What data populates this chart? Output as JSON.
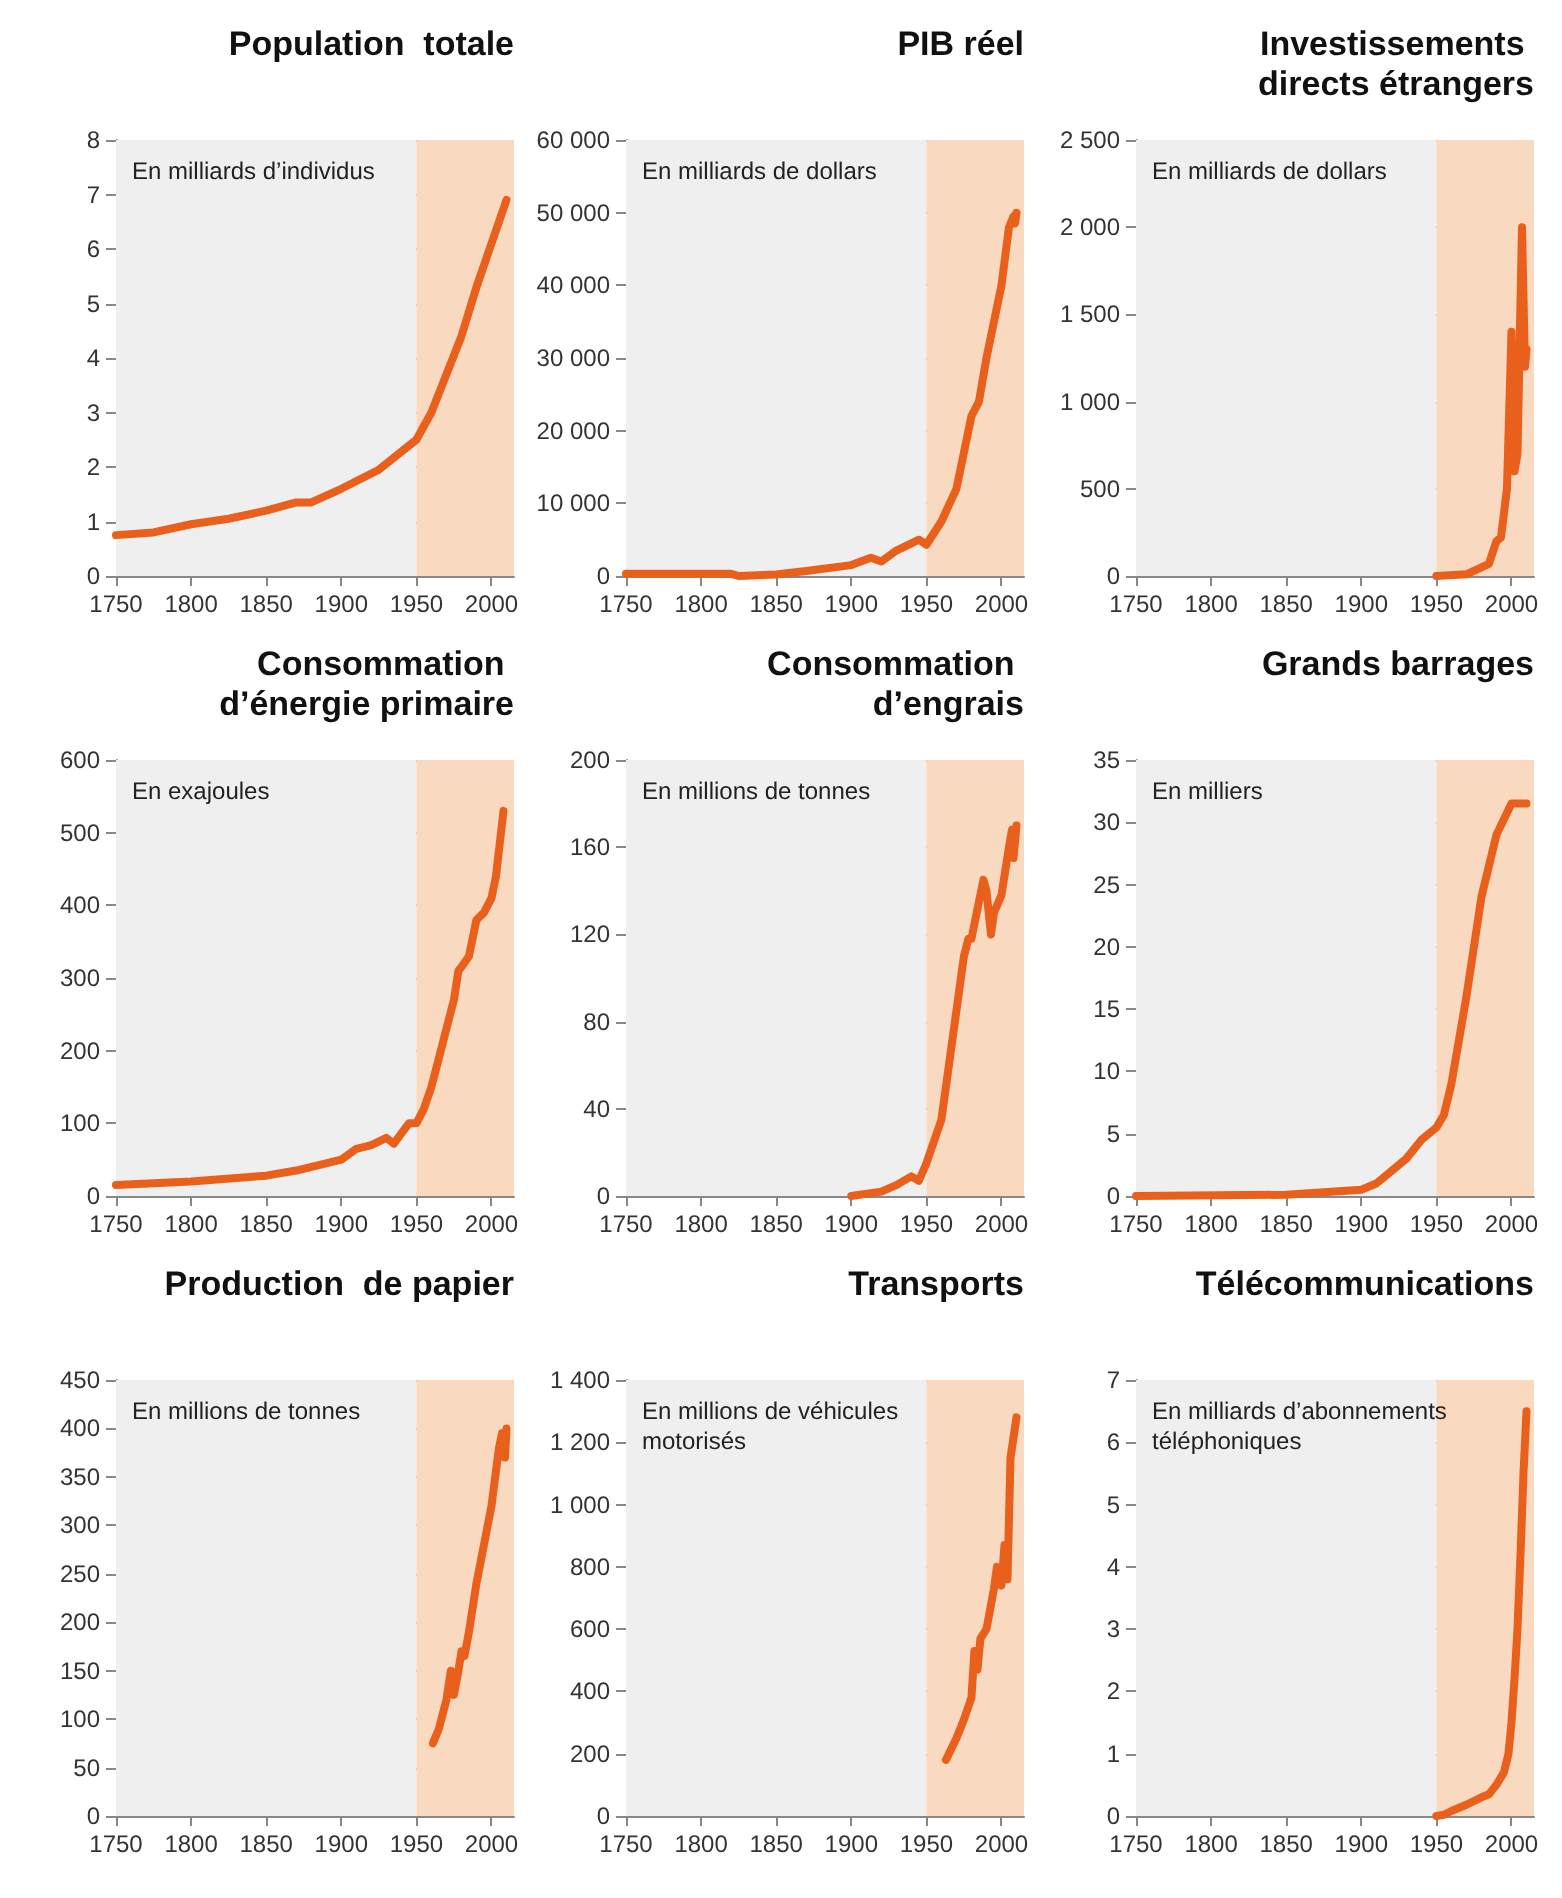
{
  "chart_data": [
    {
      "type": "line",
      "title": "Population  totale",
      "annotations": [
        "En milliards d’individus"
      ],
      "x": [
        1750,
        1775,
        1800,
        1825,
        1850,
        1870,
        1880,
        1900,
        1925,
        1950,
        1960,
        1970,
        1980,
        1990,
        2000,
        2010
      ],
      "values": [
        0.75,
        0.8,
        0.95,
        1.05,
        1.2,
        1.35,
        1.35,
        1.6,
        1.95,
        2.5,
        3.0,
        3.7,
        4.4,
        5.3,
        6.1,
        6.9
      ],
      "color": "#e8601c",
      "xlim": [
        1750,
        2015
      ],
      "xticks": [
        1750,
        1800,
        1850,
        1900,
        1950,
        2000
      ],
      "ylim": [
        0,
        8
      ],
      "yticks": [
        0,
        1,
        2,
        3,
        4,
        5,
        6,
        7,
        8
      ],
      "grid": "y",
      "bands": [
        {
          "axis": "x",
          "from": 1750,
          "to": 1950,
          "color": "#efefef"
        },
        {
          "axis": "x",
          "from": 1950,
          "to": 2015,
          "color": "#fad9c1"
        }
      ]
    },
    {
      "type": "line",
      "title": "PIB réel",
      "annotations": [
        "En milliards de dollars"
      ],
      "x": [
        1750,
        1820,
        1825,
        1850,
        1870,
        1900,
        1913,
        1920,
        1930,
        1940,
        1945,
        1950,
        1960,
        1970,
        1975,
        1980,
        1985,
        1990,
        2000,
        2005,
        2008,
        2009,
        2010
      ],
      "values": [
        300,
        300,
        0,
        200,
        700,
        1500,
        2500,
        2000,
        3500,
        4500,
        5000,
        4300,
        7500,
        12000,
        17000,
        22000,
        24000,
        30000,
        40000,
        48000,
        49500,
        48500,
        50000
      ],
      "color": "#e8601c",
      "xlim": [
        1750,
        2015
      ],
      "xticks": [
        1750,
        1800,
        1850,
        1900,
        1950,
        2000
      ],
      "ylim": [
        0,
        60000
      ],
      "yticks": [
        0,
        {
          "value": 10000,
          "label": "10 000"
        },
        {
          "value": 20000,
          "label": "20 000"
        },
        {
          "value": 30000,
          "label": "30 000"
        },
        {
          "value": 40000,
          "label": "40 000"
        },
        {
          "value": 50000,
          "label": "50 000"
        },
        {
          "value": 60000,
          "label": "60 000"
        }
      ],
      "grid": "y",
      "bands": [
        {
          "axis": "x",
          "from": 1750,
          "to": 1950,
          "color": "#efefef"
        },
        {
          "axis": "x",
          "from": 1950,
          "to": 2015,
          "color": "#fad9c1"
        }
      ]
    },
    {
      "type": "line",
      "title": "Investissements directs étrangers",
      "annotations": [
        "En milliards de dollars"
      ],
      "x": [
        1950,
        1970,
        1980,
        1985,
        1990,
        1993,
        1997,
        2000,
        2002,
        2004,
        2007,
        2009,
        2010
      ],
      "values": [
        0,
        10,
        50,
        70,
        200,
        220,
        500,
        1400,
        600,
        700,
        2000,
        1200,
        1300
      ],
      "color": "#e8601c",
      "xlim": [
        1750,
        2015
      ],
      "xticks": [
        1750,
        1800,
        1850,
        1900,
        1950,
        2000
      ],
      "ylim": [
        0,
        2500
      ],
      "yticks": [
        0,
        500,
        {
          "value": 1000,
          "label": "1 000"
        },
        {
          "value": 1500,
          "label": "1 500"
        },
        {
          "value": 2000,
          "label": "2 000"
        },
        {
          "value": 2500,
          "label": "2 500"
        }
      ],
      "grid": "y",
      "bands": [
        {
          "axis": "x",
          "from": 1750,
          "to": 1950,
          "color": "#efefef"
        },
        {
          "axis": "x",
          "from": 1950,
          "to": 2015,
          "color": "#fad9c1"
        }
      ]
    },
    {
      "type": "line",
      "title": "Consommation d’énergie primaire",
      "annotations": [
        "En exajoules"
      ],
      "x": [
        1750,
        1800,
        1850,
        1870,
        1900,
        1910,
        1920,
        1930,
        1935,
        1945,
        1950,
        1955,
        1960,
        1965,
        1970,
        1975,
        1978,
        1980,
        1985,
        1990,
        1995,
        2000,
        2003,
        2008
      ],
      "values": [
        15,
        20,
        28,
        35,
        50,
        65,
        70,
        80,
        72,
        100,
        100,
        120,
        150,
        190,
        230,
        270,
        310,
        315,
        330,
        380,
        390,
        410,
        440,
        530
      ],
      "color": "#e8601c",
      "xlim": [
        1750,
        2015
      ],
      "xticks": [
        1750,
        1800,
        1850,
        1900,
        1950,
        2000
      ],
      "ylim": [
        0,
        600
      ],
      "yticks": [
        0,
        100,
        200,
        300,
        400,
        500,
        600
      ],
      "grid": "y",
      "bands": [
        {
          "axis": "x",
          "from": 1750,
          "to": 1950,
          "color": "#efefef"
        },
        {
          "axis": "x",
          "from": 1950,
          "to": 2015,
          "color": "#fad9c1"
        }
      ]
    },
    {
      "type": "line",
      "title": "Consommation d’engrais",
      "annotations": [
        "En millions de tonnes"
      ],
      "x": [
        1900,
        1920,
        1930,
        1940,
        1945,
        1950,
        1955,
        1960,
        1965,
        1970,
        1975,
        1978,
        1980,
        1985,
        1988,
        1990,
        1993,
        1995,
        2000,
        2005,
        2007,
        2008,
        2010
      ],
      "values": [
        0,
        2,
        5,
        9,
        7,
        15,
        25,
        35,
        60,
        85,
        110,
        118,
        118,
        135,
        145,
        140,
        120,
        130,
        138,
        160,
        168,
        155,
        170
      ],
      "color": "#e8601c",
      "xlim": [
        1750,
        2015
      ],
      "xticks": [
        1750,
        1800,
        1850,
        1900,
        1950,
        2000
      ],
      "ylim": [
        0,
        200
      ],
      "yticks": [
        0,
        40,
        80,
        120,
        160,
        200
      ],
      "grid": "y",
      "bands": [
        {
          "axis": "x",
          "from": 1750,
          "to": 1950,
          "color": "#efefef"
        },
        {
          "axis": "x",
          "from": 1950,
          "to": 2015,
          "color": "#fad9c1"
        }
      ]
    },
    {
      "type": "line",
      "title": "Grands barrages",
      "annotations": [
        "En milliers"
      ],
      "x": [
        1750,
        1850,
        1900,
        1910,
        1920,
        1930,
        1940,
        1950,
        1955,
        1960,
        1970,
        1980,
        1990,
        2000,
        2010
      ],
      "values": [
        0,
        0.1,
        0.5,
        1,
        2,
        3,
        4.5,
        5.5,
        6.5,
        9,
        16,
        24,
        29,
        31.5,
        31.5
      ],
      "color": "#e8601c",
      "xlim": [
        1750,
        2015
      ],
      "xticks": [
        1750,
        1800,
        1850,
        1900,
        1950,
        2000
      ],
      "ylim": [
        0,
        35
      ],
      "yticks": [
        0,
        5,
        10,
        15,
        20,
        25,
        30,
        35
      ],
      "grid": "y",
      "bands": [
        {
          "axis": "x",
          "from": 1750,
          "to": 1950,
          "color": "#efefef"
        },
        {
          "axis": "x",
          "from": 1950,
          "to": 2015,
          "color": "#fad9c1"
        }
      ]
    },
    {
      "type": "line",
      "title": "Production  de papier",
      "annotations": [
        "En millions de tonnes"
      ],
      "x": [
        1961,
        1965,
        1970,
        1973,
        1975,
        1978,
        1980,
        1982,
        1985,
        1990,
        1995,
        2000,
        2005,
        2007,
        2009,
        2010
      ],
      "values": [
        75,
        90,
        120,
        150,
        125,
        150,
        170,
        165,
        190,
        240,
        280,
        320,
        380,
        395,
        370,
        400
      ],
      "color": "#e8601c",
      "xlim": [
        1750,
        2015
      ],
      "xticks": [
        1750,
        1800,
        1850,
        1900,
        1950,
        2000
      ],
      "ylim": [
        0,
        450
      ],
      "yticks": [
        0,
        50,
        100,
        150,
        200,
        250,
        300,
        350,
        400,
        450
      ],
      "grid": "y",
      "bands": [
        {
          "axis": "x",
          "from": 1750,
          "to": 1950,
          "color": "#efefef"
        },
        {
          "axis": "x",
          "from": 1950,
          "to": 2015,
          "color": "#fad9c1"
        }
      ]
    },
    {
      "type": "line",
      "title": "Transports",
      "annotations": [
        "En millions de véhicules motorisés"
      ],
      "x": [
        1963,
        1970,
        1975,
        1980,
        1982,
        1984,
        1986,
        1990,
        1995,
        1997,
        2000,
        2002,
        2004,
        2006,
        2010
      ],
      "values": [
        180,
        250,
        310,
        380,
        530,
        470,
        570,
        600,
        730,
        800,
        740,
        870,
        760,
        1150,
        1280
      ],
      "color": "#e8601c",
      "xlim": [
        1750,
        2015
      ],
      "xticks": [
        1750,
        1800,
        1850,
        1900,
        1950,
        2000
      ],
      "ylim": [
        0,
        1400
      ],
      "yticks": [
        0,
        200,
        400,
        600,
        800,
        {
          "value": 1000,
          "label": "1 000"
        },
        {
          "value": 1200,
          "label": "1 200"
        },
        {
          "value": 1400,
          "label": "1 400"
        }
      ],
      "grid": "y",
      "bands": [
        {
          "axis": "x",
          "from": 1750,
          "to": 1950,
          "color": "#efefef"
        },
        {
          "axis": "x",
          "from": 1950,
          "to": 2015,
          "color": "#fad9c1"
        }
      ]
    },
    {
      "type": "line",
      "title": "Télécommunications",
      "annotations": [
        "En milliards d’abonnements téléphoniques"
      ],
      "x": [
        1950,
        1955,
        1960,
        1970,
        1980,
        1985,
        1990,
        1995,
        1998,
        2000,
        2002,
        2004,
        2006,
        2008,
        2010
      ],
      "values": [
        0,
        0.02,
        0.08,
        0.18,
        0.3,
        0.35,
        0.5,
        0.7,
        1.0,
        1.5,
        2.2,
        3.0,
        4.2,
        5.5,
        6.5
      ],
      "color": "#e8601c",
      "xlim": [
        1750,
        2015
      ],
      "xticks": [
        1750,
        1800,
        1850,
        1900,
        1950,
        2000
      ],
      "ylim": [
        0,
        7
      ],
      "yticks": [
        0,
        1,
        2,
        3,
        4,
        5,
        6,
        7
      ],
      "grid": "y",
      "bands": [
        {
          "axis": "x",
          "from": 1750,
          "to": 1950,
          "color": "#efefef"
        },
        {
          "axis": "x",
          "from": 1950,
          "to": 2015,
          "color": "#fad9c1"
        }
      ]
    }
  ]
}
